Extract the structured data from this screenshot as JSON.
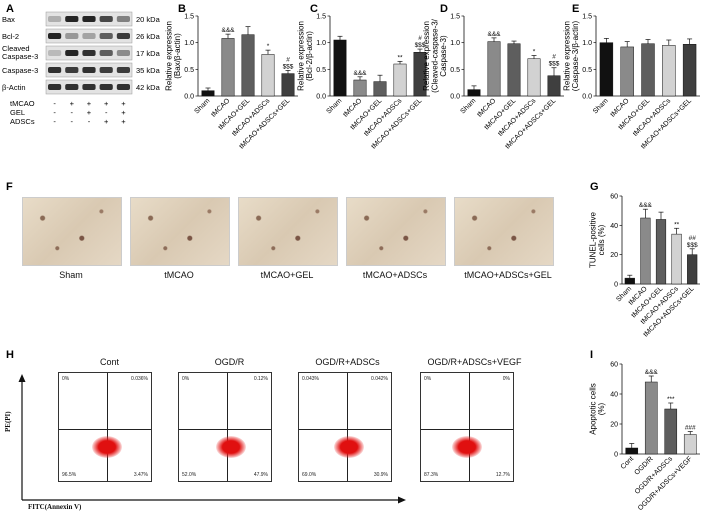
{
  "panels": {
    "A": "A",
    "B": "B",
    "C": "C",
    "D": "D",
    "E": "E",
    "F": "F",
    "G": "G",
    "H": "H",
    "I": "I"
  },
  "western_blot": {
    "rows": [
      {
        "label": "Bax",
        "kda": "20 kDa"
      },
      {
        "label": "Bcl-2",
        "kda": "26 kDa"
      },
      {
        "label": "Cleaved Caspase-3",
        "kda": "17 kDa"
      },
      {
        "label": "Caspase-3",
        "kda": "35 kDa"
      },
      {
        "label": "β-Actin",
        "kda": "42 kDa"
      }
    ],
    "conditions": [
      {
        "label": "tMCAO",
        "marks": [
          "-",
          "+",
          "+",
          "+",
          "+"
        ]
      },
      {
        "label": "GEL",
        "marks": [
          "-",
          "-",
          "+",
          "-",
          "+"
        ]
      },
      {
        "label": "ADSCs",
        "marks": [
          "-",
          "-",
          "-",
          "+",
          "+"
        ]
      }
    ]
  },
  "tunel": {
    "captions": [
      "Sham",
      "tMCAO",
      "tMCAO+GEL",
      "tMCAO+ADSCs",
      "tMCAO+ADSCs+GEL"
    ]
  },
  "flow": {
    "titles": [
      "Cont",
      "OGD/R",
      "OGD/R+ADSCs",
      "OGD/R+ADSCs+VEGF"
    ],
    "quadrants": [
      [
        "0%",
        "0.036%",
        "96.5%",
        "3.47%"
      ],
      [
        "0%",
        "0.12%",
        "52.0%",
        "47.9%"
      ],
      [
        "0.043%",
        "0.042%",
        "69.0%",
        "30.9%"
      ],
      [
        "0%",
        "0%",
        "87.3%",
        "12.7%"
      ]
    ],
    "ylabel": "PE(PI)",
    "xlabel": "FITC(Annexin V)"
  },
  "chart_data": [
    {
      "panel": "B",
      "type": "bar",
      "categories": [
        "Sham",
        "tMCAO",
        "tMCAO+GEL",
        "tMCAO+ADSCs",
        "tMCAO+ADSCs+GEL"
      ],
      "values": [
        0.1,
        1.08,
        1.15,
        0.78,
        0.42
      ],
      "errors": [
        0.05,
        0.08,
        0.15,
        0.08,
        0.06
      ],
      "annotations": [
        "",
        "&&&",
        "",
        "*",
        "#\n$$$"
      ],
      "ylabel": "Relative expression\n(Bax/β-actin)",
      "ylim": [
        0,
        1.5
      ],
      "yticks": [
        "0.0",
        "0.5",
        "1.0",
        "1.5"
      ]
    },
    {
      "panel": "C",
      "type": "bar",
      "categories": [
        "Sham",
        "tMCAO",
        "tMCAO+GEL",
        "tMCAO+ADSCs",
        "tMCAO+ADSCs+GEL"
      ],
      "values": [
        1.05,
        0.3,
        0.27,
        0.6,
        0.82
      ],
      "errors": [
        0.07,
        0.06,
        0.12,
        0.05,
        0.06
      ],
      "annotations": [
        "",
        "&&&",
        "",
        "**",
        "#\n$$$"
      ],
      "ylabel": "Relative expression\n(Bcl-2/β-actin)",
      "ylim": [
        0,
        1.5
      ],
      "yticks": [
        "0.0",
        "0.5",
        "1.0",
        "1.5"
      ]
    },
    {
      "panel": "D",
      "type": "bar",
      "categories": [
        "Sham",
        "tMCAO",
        "tMCAO+GEL",
        "tMCAO+ADSCs",
        "tMCAO+ADSCs+GEL"
      ],
      "values": [
        0.12,
        1.02,
        0.98,
        0.7,
        0.38
      ],
      "errors": [
        0.07,
        0.07,
        0.05,
        0.06,
        0.15
      ],
      "annotations": [
        "",
        "&&&",
        "",
        "*",
        "#\n$$$"
      ],
      "ylabel": "Relative expression\n(Cleaved-caspase-3/\nCaspase-3)",
      "ylim": [
        0,
        1.5
      ],
      "yticks": [
        "0.0",
        "0.5",
        "1.0",
        "1.5"
      ]
    },
    {
      "panel": "E",
      "type": "bar",
      "categories": [
        "Sham",
        "tMCAO",
        "tMCAO+GEL",
        "tMCAO+ADSCs",
        "tMCAO+ADSCs+GEL"
      ],
      "values": [
        1.0,
        0.92,
        0.98,
        0.95,
        0.97
      ],
      "errors": [
        0.08,
        0.1,
        0.08,
        0.1,
        0.1
      ],
      "annotations": [
        "",
        "",
        "",
        "",
        ""
      ],
      "ylabel": "Relative expression\n(Caspase-3/β-actin)",
      "ylim": [
        0,
        1.5
      ],
      "yticks": [
        "0.0",
        "0.5",
        "1.0",
        "1.5"
      ]
    },
    {
      "panel": "G",
      "type": "bar",
      "categories": [
        "Sham",
        "tMCAO",
        "tMCAO+GEL",
        "tMCAO+ADSCs",
        "tMCAO+ADSCs+GEL"
      ],
      "values": [
        4,
        45,
        44,
        34,
        20
      ],
      "errors": [
        2,
        6,
        5,
        4,
        4
      ],
      "annotations": [
        "",
        "&&&",
        "",
        "**",
        "##\n$$$"
      ],
      "ylabel": "TUNEL-positive\ncells (%)",
      "ylim": [
        0,
        60
      ],
      "yticks": [
        "0",
        "20",
        "40",
        "60"
      ]
    },
    {
      "panel": "I",
      "type": "bar",
      "categories": [
        "Cont",
        "OGD/R",
        "OGD/R+ADSCs",
        "OGD/R+ADSCs+VEGF"
      ],
      "values": [
        4,
        48,
        30,
        13
      ],
      "errors": [
        3,
        4,
        4,
        2
      ],
      "annotations": [
        "",
        "&&&",
        "***",
        "###"
      ],
      "ylabel": "Apoptotic cells\n(%)",
      "ylim": [
        0,
        60
      ],
      "yticks": [
        "0",
        "20",
        "40",
        "60"
      ]
    }
  ],
  "colors": {
    "bar_fills": [
      "#111111",
      "#8a8a8a",
      "#5e5e5e",
      "#d2d2d2",
      "#3f3f3f"
    ],
    "bar_fills_I": [
      "#111111",
      "#8a8a8a",
      "#5e5e5e",
      "#d2d2d2"
    ]
  }
}
